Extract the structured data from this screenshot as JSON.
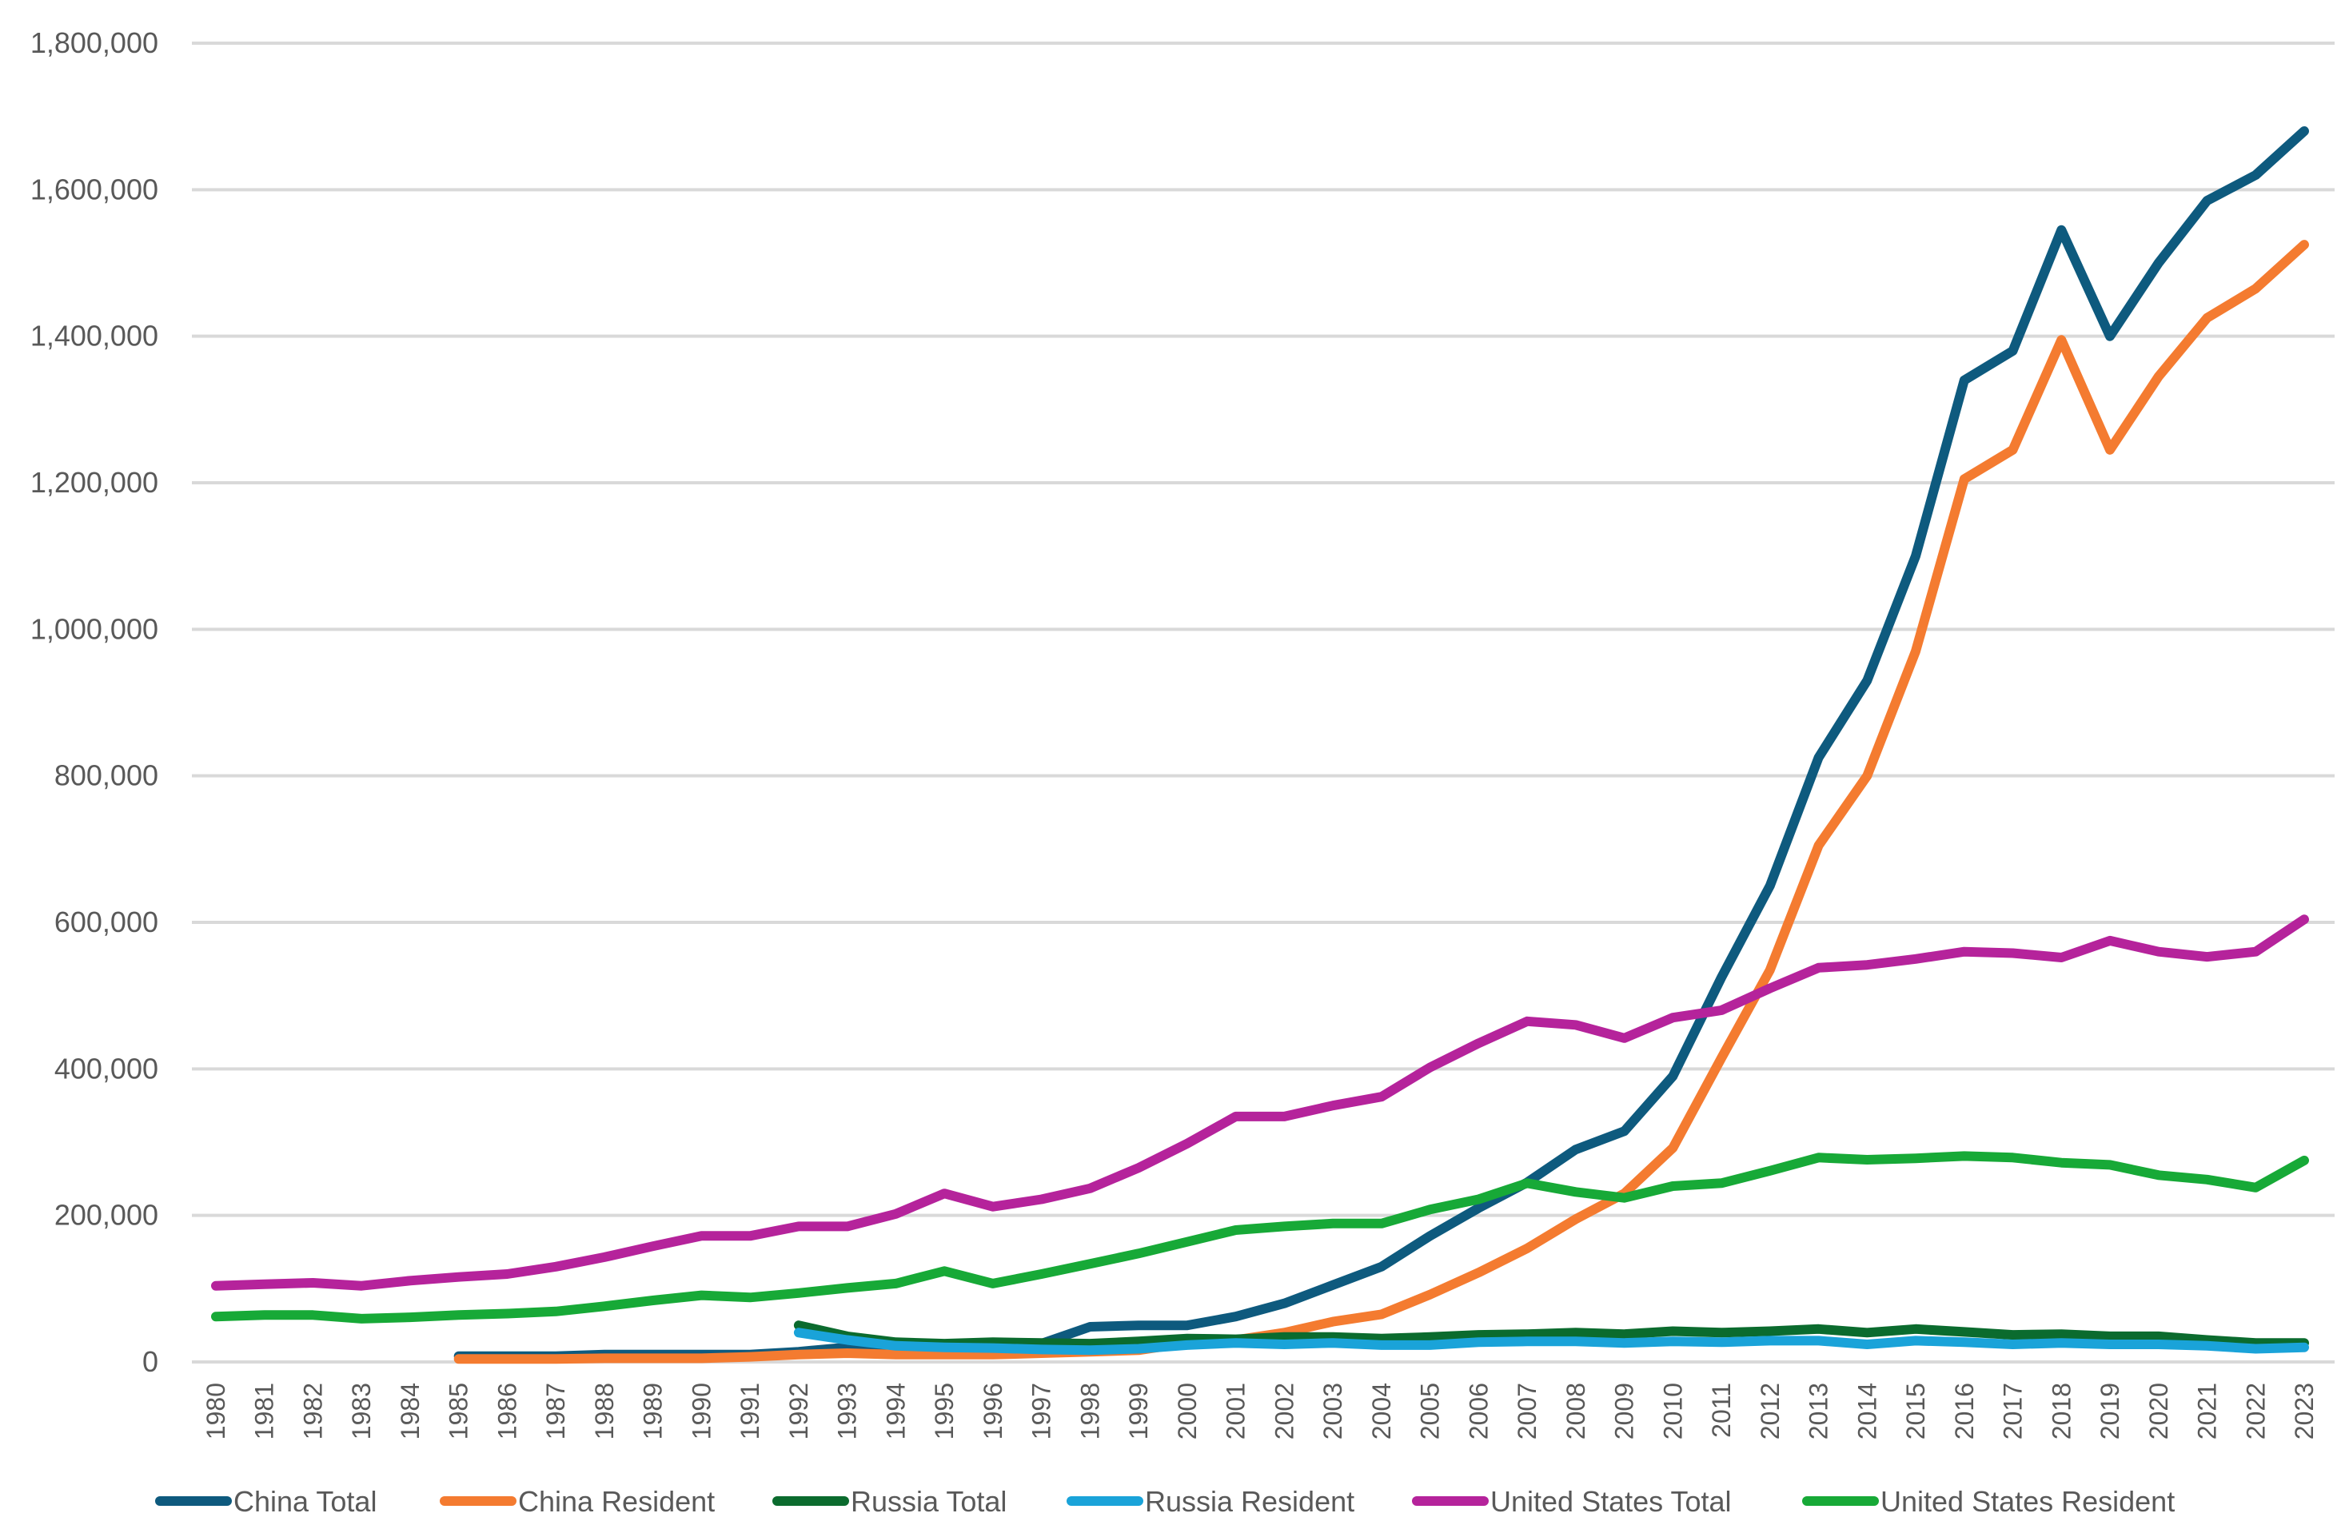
{
  "chart_data": {
    "type": "line",
    "title": "",
    "xlabel": "",
    "ylabel": "",
    "ylim": [
      0,
      1800000
    ],
    "yticks": [
      0,
      200000,
      400000,
      600000,
      800000,
      1000000,
      1200000,
      1400000,
      1600000,
      1800000
    ],
    "ytick_labels": [
      "0",
      "200,000",
      "400,000",
      "600,000",
      "800,000",
      "1,000,000",
      "1,200,000",
      "1,400,000",
      "1,600,000",
      "1,800,000"
    ],
    "grid": true,
    "legend_position": "bottom",
    "categories": [
      "1980",
      "1981",
      "1982",
      "1983",
      "1984",
      "1985",
      "1986",
      "1987",
      "1988",
      "1989",
      "1990",
      "1991",
      "1992",
      "1993",
      "1994",
      "1995",
      "1996",
      "1997",
      "1998",
      "1999",
      "2000",
      "2001",
      "2002",
      "2003",
      "2004",
      "2005",
      "2006",
      "2007",
      "2008",
      "2009",
      "2010",
      "2011",
      "2012",
      "2013",
      "2014",
      "2015",
      "2016",
      "2017",
      "2018",
      "2019",
      "2020",
      "2021",
      "2022",
      "2023"
    ],
    "series": [
      {
        "name": "China Total",
        "color": "#0e5a7e",
        "values": [
          null,
          null,
          null,
          null,
          null,
          8000,
          8000,
          8000,
          10000,
          10000,
          10000,
          10000,
          14000,
          20000,
          18000,
          18000,
          18000,
          25000,
          48000,
          50000,
          50000,
          62000,
          80000,
          105000,
          130000,
          172000,
          210000,
          245000,
          290000,
          315000,
          390000,
          525000,
          650000,
          825000,
          930000,
          1100000,
          1340000,
          1380000,
          1545000,
          1400000,
          1500000,
          1585000,
          1620000,
          1680000
        ]
      },
      {
        "name": "China Resident",
        "color": "#f47b30",
        "values": [
          null,
          null,
          null,
          null,
          null,
          4000,
          4000,
          4000,
          5000,
          5000,
          5000,
          7000,
          10000,
          12000,
          10000,
          10000,
          10000,
          12000,
          14000,
          16000,
          26000,
          30000,
          40000,
          55000,
          65000,
          92000,
          122000,
          155000,
          195000,
          230000,
          292000,
          415000,
          535000,
          705000,
          800000,
          970000,
          1205000,
          1245000,
          1395000,
          1245000,
          1345000,
          1425000,
          1465000,
          1525000
        ]
      },
      {
        "name": "Russia Total",
        "color": "#0b6b2e",
        "values": [
          null,
          null,
          null,
          null,
          null,
          null,
          null,
          null,
          null,
          null,
          null,
          null,
          50000,
          35000,
          27000,
          25000,
          27000,
          26000,
          25000,
          28000,
          32000,
          31000,
          34000,
          34000,
          32000,
          34000,
          37000,
          38000,
          40000,
          38000,
          42000,
          40000,
          42000,
          45000,
          40000,
          45000,
          41000,
          37000,
          38000,
          35000,
          35000,
          30000,
          26000,
          26000
        ]
      },
      {
        "name": "Russia Resident",
        "color": "#1aa3d9",
        "values": [
          null,
          null,
          null,
          null,
          null,
          null,
          null,
          null,
          null,
          null,
          null,
          null,
          40000,
          30000,
          22000,
          20000,
          19000,
          17000,
          16000,
          18000,
          23000,
          26000,
          24000,
          26000,
          23000,
          23000,
          27000,
          28000,
          28000,
          26000,
          28000,
          27000,
          29000,
          29000,
          24000,
          29000,
          27000,
          24000,
          26000,
          24000,
          24000,
          22000,
          18000,
          20000
        ]
      },
      {
        "name": "United States Total",
        "color": "#b5239b",
        "values": [
          104000,
          106000,
          108000,
          104000,
          111000,
          116000,
          120000,
          130000,
          143000,
          158000,
          172000,
          172000,
          185000,
          185000,
          202000,
          230000,
          212000,
          222000,
          237000,
          265000,
          298000,
          335000,
          335000,
          350000,
          362000,
          402000,
          435000,
          465000,
          460000,
          442000,
          470000,
          480000,
          510000,
          538000,
          542000,
          550000,
          560000,
          558000,
          552000,
          575000,
          560000,
          553000,
          560000,
          604000
        ]
      },
      {
        "name": "United States Resident",
        "color": "#17a937",
        "values": [
          62000,
          64000,
          64000,
          59000,
          61000,
          64000,
          66000,
          69000,
          76000,
          84000,
          91000,
          88000,
          94000,
          101000,
          107000,
          124000,
          107000,
          120000,
          134000,
          148000,
          164000,
          180000,
          185000,
          189000,
          189000,
          208000,
          222000,
          244000,
          232000,
          224000,
          240000,
          244000,
          261000,
          279000,
          276000,
          278000,
          281000,
          279000,
          272000,
          269000,
          255000,
          249000,
          238000,
          275000
        ]
      }
    ]
  }
}
